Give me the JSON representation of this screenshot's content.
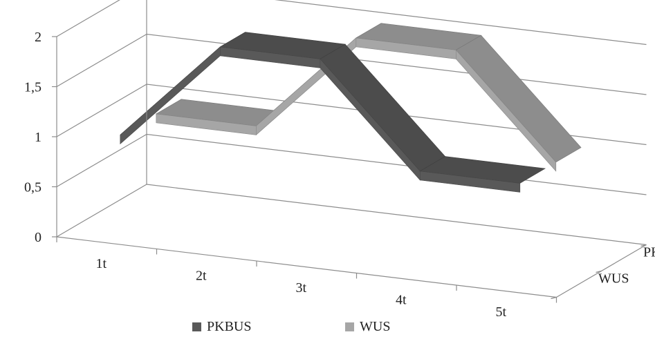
{
  "chart_data": {
    "type": "line",
    "style": "3d-ribbon",
    "categories": [
      "1t",
      "2t",
      "3t",
      "4t",
      "5t"
    ],
    "series": [
      {
        "name": "PKBUS",
        "values": [
          1,
          2,
          2,
          1,
          1
        ],
        "color": "#595959"
      },
      {
        "name": "WUS",
        "values": [
          1,
          1,
          2,
          2,
          1
        ],
        "color": "#a6a6a6"
      }
    ],
    "y_ticks": [
      "0",
      "0,5",
      "1",
      "1,5",
      "2"
    ],
    "y_values": [
      0,
      0.5,
      1,
      1.5,
      2
    ],
    "ylim": [
      0,
      2
    ],
    "depth_labels": [
      "PKBUS",
      "WUS"
    ],
    "grid": true,
    "legend_position": "bottom"
  }
}
